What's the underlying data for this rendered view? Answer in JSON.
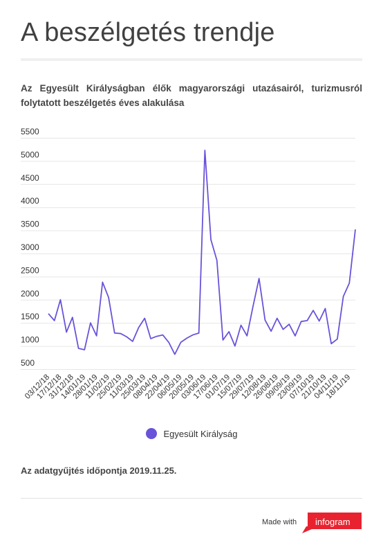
{
  "header": {
    "title": "A beszélgetés trendje",
    "subtitle": "Az Egyesült Királyságban élők magyarországi utazásairól, turizmusról folytatott beszélgetés éves alakulása"
  },
  "chart_data": {
    "type": "line",
    "ylim": [
      500,
      5500
    ],
    "yticks": [
      5500,
      5000,
      4500,
      4000,
      3500,
      3000,
      2500,
      2000,
      1500,
      1000,
      500
    ],
    "grid": true,
    "legend_placement": "bottom-center",
    "x_labels": [
      "03/12/18",
      "17/12/18",
      "31/12/18",
      "14/01/19",
      "28/01/19",
      "11/02/19",
      "25/02/19",
      "11/03/19",
      "25/03/19",
      "08/04/19",
      "22/04/19",
      "06/05/19",
      "20/05/19",
      "03/06/19",
      "17/06/19",
      "01/07/19",
      "15/07/19",
      "29/07/19",
      "12/08/19",
      "26/08/19",
      "09/09/19",
      "23/09/19",
      "07/10/19",
      "21/10/19",
      "04/11/19",
      "18/11/19"
    ],
    "series": [
      {
        "name": "Egyesült Királyság",
        "color": "#6a52d9",
        "values": [
          1700,
          1550,
          2000,
          1300,
          1620,
          950,
          920,
          1500,
          1220,
          2380,
          2050,
          1280,
          1270,
          1200,
          1100,
          1400,
          1600,
          1160,
          1210,
          1240,
          1080,
          820,
          1080,
          1170,
          1240,
          1280,
          5230,
          3300,
          2850,
          1130,
          1310,
          1000,
          1450,
          1220,
          1860,
          2460,
          1560,
          1320,
          1600,
          1360,
          1470,
          1220,
          1530,
          1550,
          1770,
          1540,
          1810,
          1050,
          1150,
          2070,
          2360,
          3520
        ]
      }
    ]
  },
  "footnote": "Az adatgyűjtés időpontja 2019.11.25.",
  "footer": {
    "made_with": "Made with",
    "brand": "infogram",
    "brand_color": "#e8232f"
  }
}
